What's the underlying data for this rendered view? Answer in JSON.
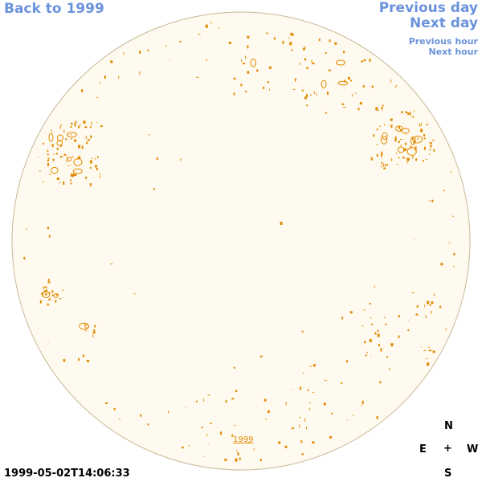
{
  "nav": {
    "back_label": "Back to 1999",
    "previous_day_label": "Previous day",
    "next_day_label": "Next day",
    "previous_hour_label": "Previous hour",
    "next_hour_label": "Next hour"
  },
  "disk": {
    "year_link_label": "1999",
    "fill_color": "#fffaef",
    "border_color": "#c8b896",
    "contour_color": "#e08a00"
  },
  "compass": {
    "north": "N",
    "south": "S",
    "east": "E",
    "west": "W",
    "center": "+"
  },
  "timestamp": "1999-05-02T14:06:33",
  "colors": {
    "link": "#6b93dc",
    "text": "#000000"
  }
}
